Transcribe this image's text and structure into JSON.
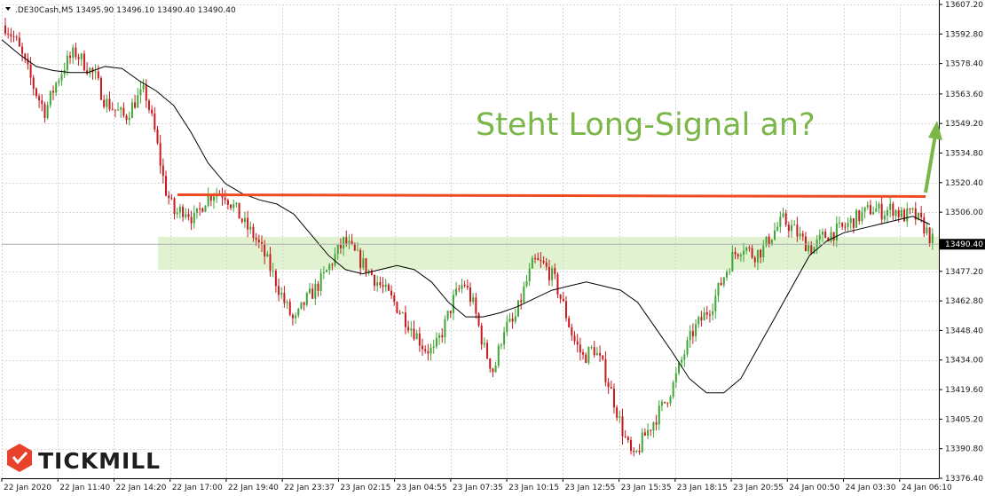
{
  "header": {
    "symbol": ".DE30Cash,M5",
    "open": "13495.90",
    "high": "13496.10",
    "low": "13490.40",
    "close": "13490.40"
  },
  "annotation": {
    "text": "Steht Long-Signal an?",
    "color": "#7ab648"
  },
  "logo": {
    "text": "TICKMILL",
    "color": "#e8412c"
  },
  "current_price_label": "13490.40",
  "colors": {
    "bull": "#3fa535",
    "bear": "#c8191e",
    "ma": "#000000",
    "resistance": "#f04a23",
    "zone": "#dcf0c8",
    "arrow": "#7ab648",
    "price_tag_bg": "#000000"
  },
  "chart_data": {
    "type": "candlestick",
    "title": "",
    "ylim": [
      13376.4,
      13607.2
    ],
    "y_ticks": [
      "13607.20",
      "13592.80",
      "13578.40",
      "13563.60",
      "13549.20",
      "13534.80",
      "13520.40",
      "13506.00",
      "13490.40",
      "13477.20",
      "13462.80",
      "13448.40",
      "13434.00",
      "13419.60",
      "13405.20",
      "13390.80",
      "13376.40"
    ],
    "x_ticks": [
      "22 Jan 2020",
      "22 Jan 11:40",
      "22 Jan 14:20",
      "22 Jan 17:00",
      "22 Jan 19:40",
      "22 Jan 23:37",
      "23 Jan 02:15",
      "23 Jan 04:55",
      "23 Jan 07:35",
      "23 Jan 10:15",
      "23 Jan 12:55",
      "23 Jan 15:35",
      "23 Jan 18:15",
      "23 Jan 20:55",
      "24 Jan 00:50",
      "24 Jan 03:30",
      "24 Jan 06:10"
    ],
    "close_series": [
      13597,
      13590,
      13578,
      13565,
      13555,
      13568,
      13578,
      13584,
      13578,
      13572,
      13560,
      13556,
      13552,
      13560,
      13565,
      13545,
      13518,
      13505,
      13508,
      13502,
      13512,
      13516,
      13515,
      13508,
      13500,
      13494,
      13485,
      13474,
      13462,
      13452,
      13462,
      13468,
      13475,
      13484,
      13492,
      13486,
      13480,
      13474,
      13468,
      13462,
      13455,
      13448,
      13440,
      13438,
      13450,
      13464,
      13472,
      13460,
      13440,
      13428,
      13450,
      13452,
      13468,
      13482,
      13480,
      13474,
      13460,
      13444,
      13435,
      13440,
      13430,
      13415,
      13398,
      13385,
      13396,
      13404,
      13412,
      13422,
      13436,
      13448,
      13455,
      13462,
      13474,
      13485,
      13490,
      13485,
      13488,
      13496,
      13502,
      13498,
      13492,
      13488,
      13494,
      13496,
      13498,
      13502,
      13505,
      13508,
      13506,
      13508,
      13504,
      13505,
      13500,
      13492
    ],
    "moving_average": [
      13590,
      13583,
      13577,
      13575,
      13574,
      13574,
      13577,
      13576,
      13570,
      13565,
      13558,
      13545,
      13530,
      13520,
      13515,
      13512,
      13510,
      13505,
      13495,
      13485,
      13478,
      13476,
      13478,
      13480,
      13478,
      13472,
      13462,
      13455,
      13455,
      13457,
      13460,
      13464,
      13468,
      13470,
      13472,
      13470,
      13468,
      13462,
      13450,
      13438,
      13425,
      13418,
      13418,
      13425,
      13440,
      13455,
      13470,
      13485,
      13492,
      13496,
      13498,
      13500,
      13502,
      13504,
      13500
    ],
    "resistance_level": 13514.5,
    "support_zone": [
      13478,
      13494
    ],
    "current_price": 13490.4,
    "annotation_arrow": {
      "from": [
        13514,
        0.935
      ],
      "to": [
        13548,
        0.95
      ]
    }
  }
}
